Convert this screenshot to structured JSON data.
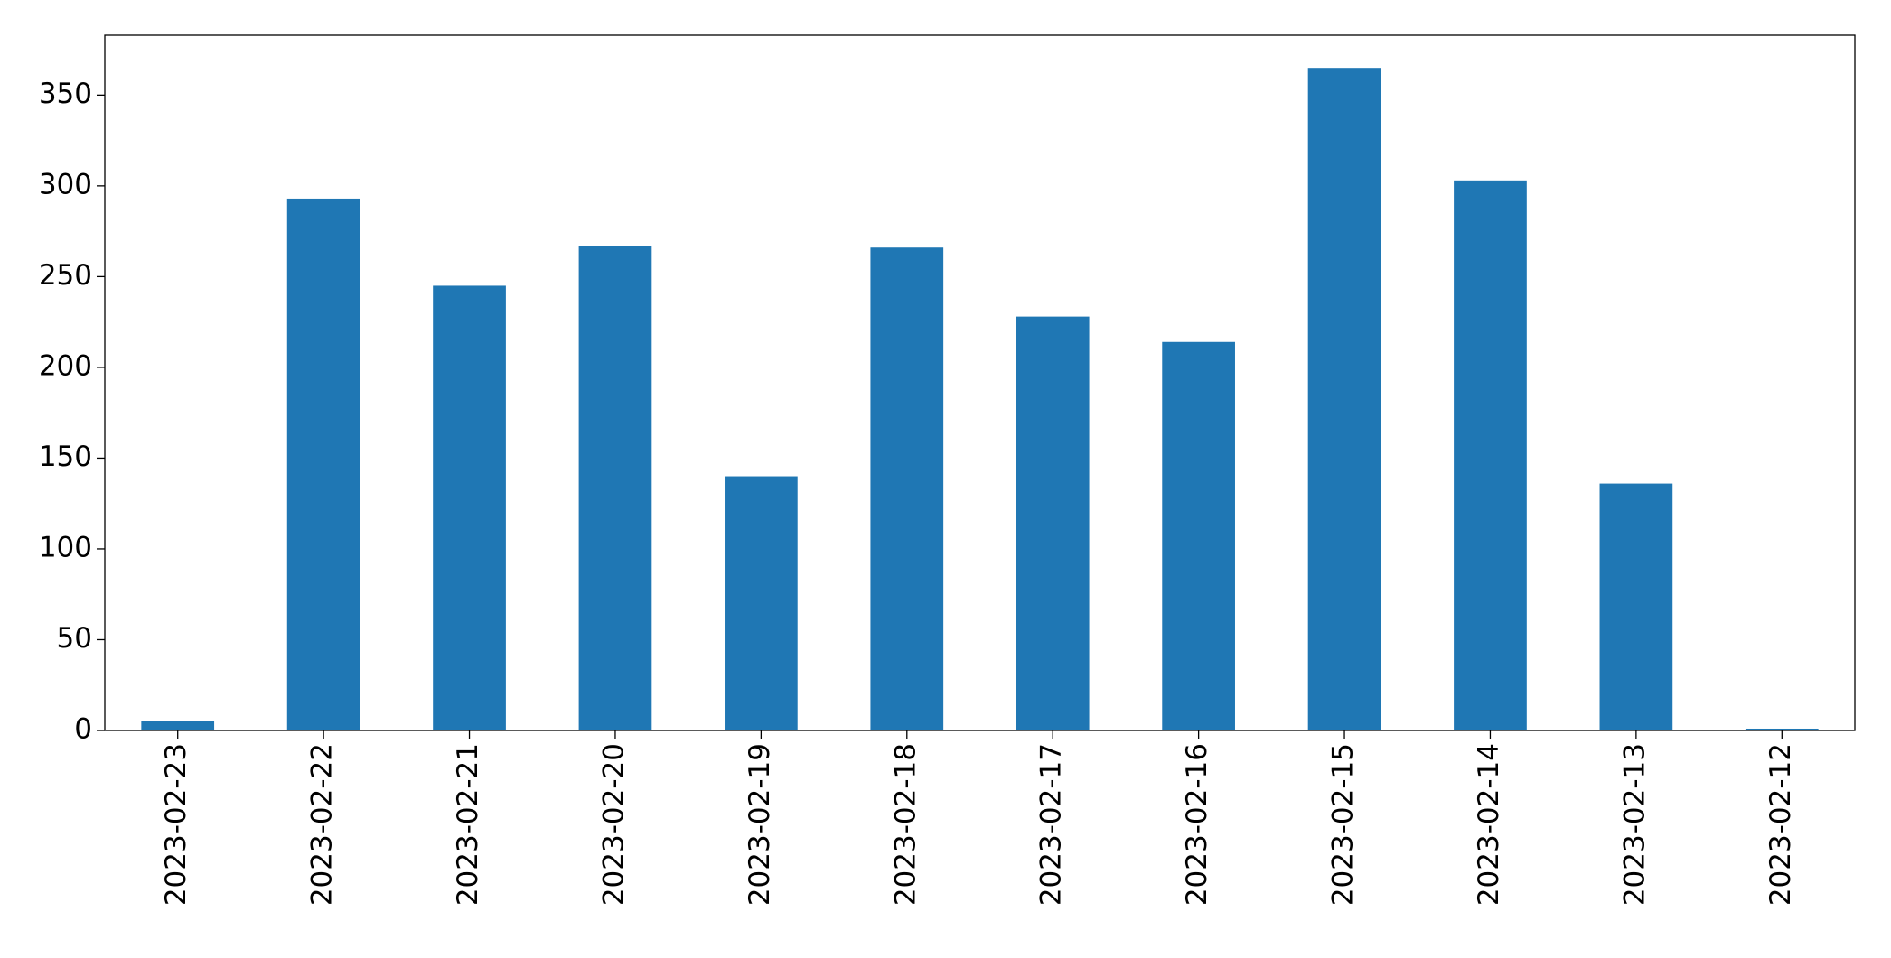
{
  "chart_data": {
    "type": "bar",
    "categories": [
      "2023-02-23",
      "2023-02-22",
      "2023-02-21",
      "2023-02-20",
      "2023-02-19",
      "2023-02-18",
      "2023-02-17",
      "2023-02-16",
      "2023-02-15",
      "2023-02-14",
      "2023-02-13",
      "2023-02-12"
    ],
    "values": [
      5,
      293,
      245,
      267,
      140,
      266,
      228,
      214,
      365,
      303,
      136,
      1
    ],
    "color": "#1f77b4",
    "ylim": [
      0,
      383
    ],
    "yticks": [
      0,
      50,
      100,
      150,
      200,
      250,
      300,
      350
    ],
    "grid": false
  }
}
